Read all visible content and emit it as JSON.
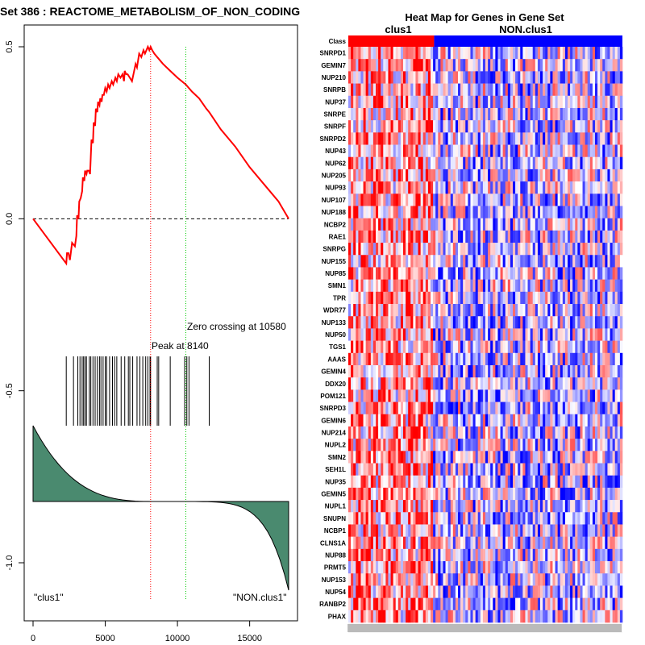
{
  "chart_data": [
    {
      "type": "line",
      "title": "Set  386 : REACTOME_METABOLISM_OF_NON_CODING",
      "xlim": [
        0,
        17700
      ],
      "ylim": [
        -1.12,
        0.54
      ],
      "x_ticks": [
        "0",
        "5000",
        "10000",
        "15000"
      ],
      "x_tick_values": [
        0,
        5000,
        10000,
        15000
      ],
      "y_ticks": [
        "0.5",
        "0.0",
        "-0.5",
        "-1.0"
      ],
      "y_tick_values": [
        0.5,
        0.0,
        -0.5,
        -1.0
      ],
      "series": [
        {
          "x": [
            0,
            2300,
            2350,
            2450,
            2550,
            2700,
            2900,
            3000,
            3050,
            3150,
            3200,
            3300,
            3400,
            3450,
            3550,
            3600,
            3700,
            3750,
            3850,
            3950,
            4000,
            4050,
            4150,
            4200,
            4300,
            4350,
            4450,
            4500,
            4600,
            4650,
            4750,
            4800,
            4900,
            5000,
            5100,
            5200,
            5300,
            5450,
            5550,
            5700,
            5800,
            5900,
            6050,
            6200,
            6300,
            6350,
            6450,
            6550,
            6700,
            6850,
            7000,
            7100,
            7200,
            7350,
            7500,
            7650,
            7750,
            7850,
            7950,
            8050,
            8140,
            8250,
            8400,
            8600,
            9000,
            9500,
            10000,
            10580,
            11000,
            11500,
            12000,
            12200,
            13000,
            14000,
            15000,
            16000,
            17000,
            17700
          ],
          "y": [
            0.0,
            -0.13,
            -0.1,
            -0.1,
            -0.12,
            -0.07,
            -0.08,
            -0.05,
            0.01,
            0.0,
            0.05,
            0.06,
            0.08,
            0.12,
            0.11,
            0.14,
            0.13,
            0.14,
            0.14,
            0.13,
            0.18,
            0.23,
            0.22,
            0.28,
            0.27,
            0.32,
            0.31,
            0.34,
            0.33,
            0.35,
            0.34,
            0.36,
            0.36,
            0.38,
            0.37,
            0.39,
            0.38,
            0.4,
            0.39,
            0.41,
            0.4,
            0.42,
            0.41,
            0.42,
            0.4,
            0.43,
            0.42,
            0.42,
            0.41,
            0.4,
            0.43,
            0.45,
            0.44,
            0.48,
            0.47,
            0.49,
            0.48,
            0.49,
            0.5,
            0.49,
            0.5,
            0.49,
            0.48,
            0.47,
            0.45,
            0.43,
            0.41,
            0.39,
            0.37,
            0.35,
            0.32,
            0.31,
            0.26,
            0.21,
            0.15,
            0.1,
            0.05,
            0.0
          ]
        }
      ],
      "hits": [
        2300,
        2800,
        3100,
        3250,
        3400,
        3500,
        3600,
        3700,
        3900,
        4000,
        4150,
        4300,
        4450,
        4600,
        4700,
        4850,
        5000,
        5100,
        5300,
        5500,
        5650,
        5800,
        6100,
        6350,
        6600,
        6700,
        6900,
        7200,
        7400,
        7600,
        7800,
        7950,
        8100,
        8140,
        8600,
        8700,
        9500,
        10500,
        10650,
        10800,
        12200
      ],
      "peak_x": 8140,
      "zero_cross_x": 10580,
      "annotations": {
        "peak": "Peak at 8140",
        "zero": "Zero crossing at 10580",
        "left": "\"clus1\"",
        "right": "\"NON.clus1\""
      },
      "colors": {
        "curve": "#ff0000",
        "peak_line": "#ff0000",
        "zero_line": "#00cc00",
        "ranked_fill": "#4a8a6f"
      }
    },
    {
      "type": "heatmap",
      "title": "Heat Map for Genes in Gene Set",
      "class_label": "Class",
      "groups": [
        {
          "name": "clus1",
          "color": "#ff0000",
          "fraction": 0.313
        },
        {
          "name": "NON.clus1",
          "color": "#0000ff",
          "fraction": 0.687
        }
      ],
      "rows": [
        "SNRPD1",
        "GEMIN7",
        "NUP210",
        "SNRPB",
        "NUP37",
        "SNRPE",
        "SNRPF",
        "SNRPD2",
        "NUP43",
        "NUP62",
        "NUP205",
        "NUP93",
        "NUP107",
        "NUP188",
        "NCBP2",
        "RAE1",
        "SNRPG",
        "NUP155",
        "NUP85",
        "SMN1",
        "TPR",
        "WDR77",
        "NUP133",
        "NUP50",
        "TGS1",
        "AAAS",
        "GEMIN4",
        "DDX20",
        "POM121",
        "SNRPD3",
        "GEMIN6",
        "NUP214",
        "NUPL2",
        "SMN2",
        "SEH1L",
        "NUP35",
        "GEMIN5",
        "NUPL1",
        "SNUPN",
        "NCBP1",
        "CLNS1A",
        "NUP88",
        "PRMT5",
        "NUP153",
        "NUP54",
        "RANBP2",
        "PHAX"
      ],
      "colors": {
        "high": "#ff0000",
        "mid": "#ffffff",
        "low": "#0000ff"
      }
    }
  ]
}
